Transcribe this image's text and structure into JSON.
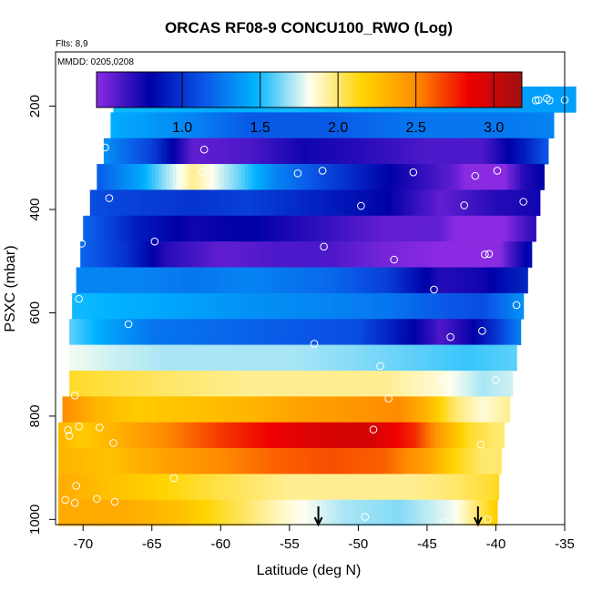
{
  "chart_data": {
    "type": "heatmap",
    "title": "ORCAS RF08-9 CONCU100_RWO (Log)",
    "flights_note": "Flts: 8,9",
    "date_note": "MMDD: 0205,0208",
    "xlabel": "Latitude (deg N)",
    "ylabel": "PSXC (mbar)",
    "xlim": [
      -72,
      -35
    ],
    "ylim": [
      1010,
      95
    ],
    "x_ticks": [
      -70,
      -65,
      -60,
      -55,
      -50,
      -45,
      -40,
      -35
    ],
    "y_ticks": [
      200,
      400,
      600,
      800,
      1000
    ],
    "colorbar": {
      "range": [
        0.45,
        3.18
      ],
      "ticks": [
        1.0,
        1.5,
        2.0,
        2.5,
        3.0
      ],
      "tick_labels": [
        "1.0",
        "1.5",
        "2.0",
        "2.5",
        "3.0"
      ],
      "colors": [
        "#8a2be2",
        "#0000a8",
        "#0a55e6",
        "#00b4ff",
        "#fffff0",
        "#ffd400",
        "#ff8c00",
        "#ee0000",
        "#a01010"
      ]
    },
    "layers": [
      {
        "p": 187,
        "lat_start": -67.8,
        "lat_end": -34.2,
        "values": [
          [
            -67.8,
            1.5
          ],
          [
            -60,
            1.45
          ],
          [
            -55,
            1.5
          ],
          [
            -45,
            1.4
          ],
          [
            -38,
            1.4
          ],
          [
            -34.2,
            1.4
          ]
        ]
      },
      {
        "p": 237,
        "lat_start": -68.0,
        "lat_end": -35.8,
        "values": [
          [
            -68,
            1.45
          ],
          [
            -62,
            1.3
          ],
          [
            -58,
            1.15
          ],
          [
            -52,
            1.15
          ],
          [
            -46,
            1.25
          ],
          [
            -40,
            1.25
          ],
          [
            -35.8,
            1.3
          ]
        ]
      },
      {
        "p": 287,
        "lat_start": -68.5,
        "lat_end": -36.2,
        "values": [
          [
            -68.5,
            1.35
          ],
          [
            -65,
            1.05
          ],
          [
            -62,
            0.55
          ],
          [
            -58,
            0.6
          ],
          [
            -54,
            0.75
          ],
          [
            -50,
            0.7
          ],
          [
            -45,
            0.6
          ],
          [
            -41,
            0.6
          ],
          [
            -38,
            0.9
          ],
          [
            -36.2,
            1.15
          ]
        ]
      },
      {
        "p": 337,
        "lat_start": -69.0,
        "lat_end": -36.5,
        "values": [
          [
            -69,
            1.15
          ],
          [
            -66,
            1.4
          ],
          [
            -62,
            1.95
          ],
          [
            -59,
            1.65
          ],
          [
            -56,
            1.3
          ],
          [
            -52,
            1.05
          ],
          [
            -47,
            0.75
          ],
          [
            -43,
            0.55
          ],
          [
            -40.5,
            0.25
          ],
          [
            -38,
            0.7
          ],
          [
            -36.5,
            0.8
          ]
        ]
      },
      {
        "p": 387,
        "lat_start": -69.5,
        "lat_end": -36.8,
        "values": [
          [
            -69.5,
            1.1
          ],
          [
            -66,
            1.05
          ],
          [
            -62,
            1.0
          ],
          [
            -58,
            1.05
          ],
          [
            -52,
            0.9
          ],
          [
            -48,
            0.8
          ],
          [
            -44,
            0.55
          ],
          [
            -40,
            0.7
          ],
          [
            -36.8,
            0.75
          ]
        ]
      },
      {
        "p": 437,
        "lat_start": -70.0,
        "lat_end": -37.1,
        "values": [
          [
            -70,
            1.2
          ],
          [
            -66,
            0.9
          ],
          [
            -62,
            0.75
          ],
          [
            -58,
            0.8
          ],
          [
            -52,
            0.65
          ],
          [
            -48,
            0.55
          ],
          [
            -44,
            0.55
          ],
          [
            -41,
            0.25
          ],
          [
            -39,
            0.5
          ],
          [
            -37.1,
            0.7
          ]
        ]
      },
      {
        "p": 487,
        "lat_start": -70.2,
        "lat_end": -37.4,
        "values": [
          [
            -70.2,
            1.2
          ],
          [
            -67,
            1.0
          ],
          [
            -64,
            0.7
          ],
          [
            -60,
            0.55
          ],
          [
            -56,
            0.6
          ],
          [
            -52,
            0.6
          ],
          [
            -48,
            0.5
          ],
          [
            -44,
            0.45
          ],
          [
            -42,
            0.35
          ],
          [
            -40.6,
            0.25
          ],
          [
            -39,
            0.6
          ],
          [
            -37.4,
            0.85
          ]
        ]
      },
      {
        "p": 537,
        "lat_start": -70.5,
        "lat_end": -37.7,
        "values": [
          [
            -70.5,
            1.3
          ],
          [
            -66,
            1.3
          ],
          [
            -62,
            1.25
          ],
          [
            -58,
            1.3
          ],
          [
            -52,
            1.2
          ],
          [
            -48,
            1.05
          ],
          [
            -44,
            0.7
          ],
          [
            -41,
            0.75
          ],
          [
            -37.7,
            0.95
          ]
        ]
      },
      {
        "p": 587,
        "lat_start": -70.8,
        "lat_end": -38.0,
        "values": [
          [
            -70.8,
            1.5
          ],
          [
            -66,
            1.45
          ],
          [
            -62,
            1.4
          ],
          [
            -58,
            1.35
          ],
          [
            -52,
            1.3
          ],
          [
            -48,
            1.25
          ],
          [
            -44,
            1.15
          ],
          [
            -41,
            1.1
          ],
          [
            -38,
            1.35
          ]
        ]
      },
      {
        "p": 637,
        "lat_start": -71.0,
        "lat_end": -38.2,
        "values": [
          [
            -71,
            1.6
          ],
          [
            -68,
            1.4
          ],
          [
            -65,
            1.25
          ],
          [
            -60,
            1.2
          ],
          [
            -55,
            1.15
          ],
          [
            -50,
            1.1
          ],
          [
            -46,
            0.8
          ],
          [
            -44,
            0.6
          ],
          [
            -42,
            0.75
          ],
          [
            -40,
            1.0
          ],
          [
            -38.2,
            1.3
          ]
        ]
      },
      {
        "p": 687,
        "lat_start": -71.0,
        "lat_end": -38.5,
        "values": [
          [
            -71,
            1.8
          ],
          [
            -68,
            1.75
          ],
          [
            -64,
            1.7
          ],
          [
            -60,
            1.7
          ],
          [
            -55,
            1.7
          ],
          [
            -50,
            1.65
          ],
          [
            -46,
            1.6
          ],
          [
            -42,
            1.55
          ],
          [
            -38.5,
            1.6
          ]
        ]
      },
      {
        "p": 737,
        "lat_start": -71.0,
        "lat_end": -38.8,
        "values": [
          [
            -71,
            2.1
          ],
          [
            -67,
            2.05
          ],
          [
            -63,
            2.0
          ],
          [
            -58,
            1.95
          ],
          [
            -52,
            1.95
          ],
          [
            -48,
            1.95
          ],
          [
            -44,
            1.85
          ],
          [
            -41,
            1.7
          ],
          [
            -38.8,
            1.75
          ]
        ]
      },
      {
        "p": 787,
        "lat_start": -71.5,
        "lat_end": -39.0,
        "values": [
          [
            -71.5,
            2.5
          ],
          [
            -69,
            2.3
          ],
          [
            -66,
            2.2
          ],
          [
            -62,
            2.25
          ],
          [
            -58,
            2.3
          ],
          [
            -54,
            2.4
          ],
          [
            -50,
            2.45
          ],
          [
            -47,
            2.5
          ],
          [
            -45,
            2.3
          ],
          [
            -43,
            2.0
          ],
          [
            -41,
            1.85
          ],
          [
            -39,
            1.95
          ]
        ]
      },
      {
        "p": 837,
        "lat_start": -71.8,
        "lat_end": -39.4,
        "values": [
          [
            -71.8,
            2.3
          ],
          [
            -70,
            2.2
          ],
          [
            -67,
            2.35
          ],
          [
            -64,
            2.5
          ],
          [
            -60,
            2.7
          ],
          [
            -56,
            2.85
          ],
          [
            -52,
            2.95
          ],
          [
            -49,
            2.95
          ],
          [
            -46,
            2.75
          ],
          [
            -44,
            2.4
          ],
          [
            -42,
            2.1
          ],
          [
            -40,
            2.0
          ],
          [
            -39.4,
            2.0
          ]
        ]
      },
      {
        "p": 887,
        "lat_start": -71.8,
        "lat_end": -39.6,
        "values": [
          [
            -71.8,
            2.3
          ],
          [
            -68,
            2.25
          ],
          [
            -64,
            2.4
          ],
          [
            -60,
            2.5
          ],
          [
            -56,
            2.6
          ],
          [
            -52,
            2.65
          ],
          [
            -48,
            2.6
          ],
          [
            -45,
            2.4
          ],
          [
            -43,
            2.15
          ],
          [
            -41,
            2.0
          ],
          [
            -39.6,
            2.0
          ]
        ]
      },
      {
        "p": 937,
        "lat_start": -71.8,
        "lat_end": -39.8,
        "values": [
          [
            -71.8,
            2.35
          ],
          [
            -68,
            2.25
          ],
          [
            -64,
            2.15
          ],
          [
            -60,
            2.05
          ],
          [
            -55,
            1.95
          ],
          [
            -50,
            1.95
          ],
          [
            -46,
            1.95
          ],
          [
            -43,
            2.0
          ],
          [
            -40,
            2.1
          ],
          [
            -39.8,
            2.15
          ]
        ]
      },
      {
        "p": 987,
        "lat_start": -71.8,
        "lat_end": -39.9,
        "values": [
          [
            -71.8,
            2.35
          ],
          [
            -67,
            2.35
          ],
          [
            -63,
            2.25
          ],
          [
            -59,
            2.05
          ],
          [
            -55,
            1.85
          ],
          [
            -51,
            1.7
          ],
          [
            -47,
            1.65
          ],
          [
            -43,
            1.8
          ],
          [
            -41,
            2.05
          ],
          [
            -39.9,
            2.2
          ]
        ]
      }
    ],
    "sample_points": [
      [
        -67.8,
        186
      ],
      [
        -62.9,
        187
      ],
      [
        -59.6,
        186
      ],
      [
        -56.3,
        186
      ],
      [
        -50.8,
        186
      ],
      [
        -38.7,
        193
      ],
      [
        -37.1,
        189
      ],
      [
        -36.9,
        188
      ],
      [
        -36.1,
        189
      ],
      [
        -35.0,
        188
      ],
      [
        -36.3,
        185
      ],
      [
        -68.4,
        280
      ],
      [
        -61.2,
        284
      ],
      [
        -61.3,
        328
      ],
      [
        -54.4,
        330
      ],
      [
        -52.6,
        325
      ],
      [
        -46.0,
        328
      ],
      [
        -41.5,
        335
      ],
      [
        -39.9,
        325
      ],
      [
        -68.1,
        378
      ],
      [
        -49.8,
        393
      ],
      [
        -42.3,
        392
      ],
      [
        -38.0,
        385
      ],
      [
        -70.1,
        466
      ],
      [
        -64.8,
        462
      ],
      [
        -52.5,
        472
      ],
      [
        -47.4,
        497
      ],
      [
        -40.8,
        487
      ],
      [
        -40.5,
        486
      ],
      [
        -70.3,
        573
      ],
      [
        -44.5,
        555
      ],
      [
        -38.5,
        585
      ],
      [
        -66.7,
        622
      ],
      [
        -53.2,
        660
      ],
      [
        -43.3,
        647
      ],
      [
        -41.0,
        635
      ],
      [
        -48.4,
        703
      ],
      [
        -44.0,
        730
      ],
      [
        -40.0,
        730
      ],
      [
        -70.6,
        760
      ],
      [
        -47.8,
        766
      ],
      [
        -71.1,
        827
      ],
      [
        -70.3,
        820
      ],
      [
        -71.0,
        838
      ],
      [
        -68.8,
        822
      ],
      [
        -48.9,
        826
      ],
      [
        -41.1,
        855
      ],
      [
        -67.8,
        852
      ],
      [
        -70.5,
        935
      ],
      [
        -71.3,
        962
      ],
      [
        -70.6,
        968
      ],
      [
        -69.0,
        960
      ],
      [
        -67.7,
        966
      ],
      [
        -63.4,
        920
      ],
      [
        -49.5,
        995
      ],
      [
        -43.7,
        1005
      ],
      [
        -40.6,
        1000
      ]
    ],
    "arrows_at_latitude": [
      -52.9,
      -41.3
    ]
  }
}
